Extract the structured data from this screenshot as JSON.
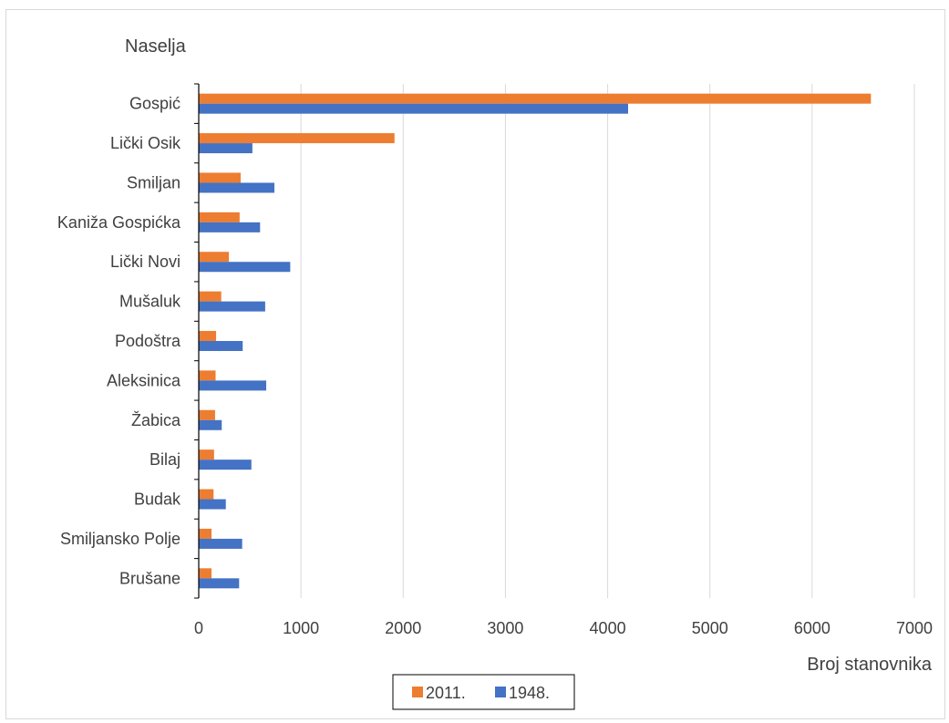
{
  "chart_data": {
    "type": "bar",
    "orientation": "horizontal",
    "y_title": "Naselja",
    "x_title": "Broj stanovnika",
    "categories": [
      "Gospić",
      "Lički Osik",
      "Smiljan",
      "Kaniža Gospićka",
      "Lički Novi",
      "Mušaluk",
      "Podoštra",
      "Aleksinica",
      "Žabica",
      "Bilaj",
      "Budak",
      "Smiljansko Polje",
      "Brušane"
    ],
    "series": [
      {
        "name": "2011.",
        "color": "#ED7D31",
        "values": [
          6575,
          1915,
          410,
          400,
          295,
          220,
          170,
          165,
          160,
          150,
          145,
          125,
          125
        ]
      },
      {
        "name": "1948.",
        "color": "#4472C4",
        "values": [
          4200,
          525,
          740,
          600,
          895,
          650,
          430,
          660,
          225,
          515,
          265,
          425,
          395
        ]
      }
    ],
    "xlim": [
      0,
      7000
    ],
    "x_ticks": [
      "0",
      "1000",
      "2000",
      "3000",
      "4000",
      "5000",
      "6000",
      "7000"
    ],
    "grid": "vertical",
    "legend": "bottom"
  }
}
